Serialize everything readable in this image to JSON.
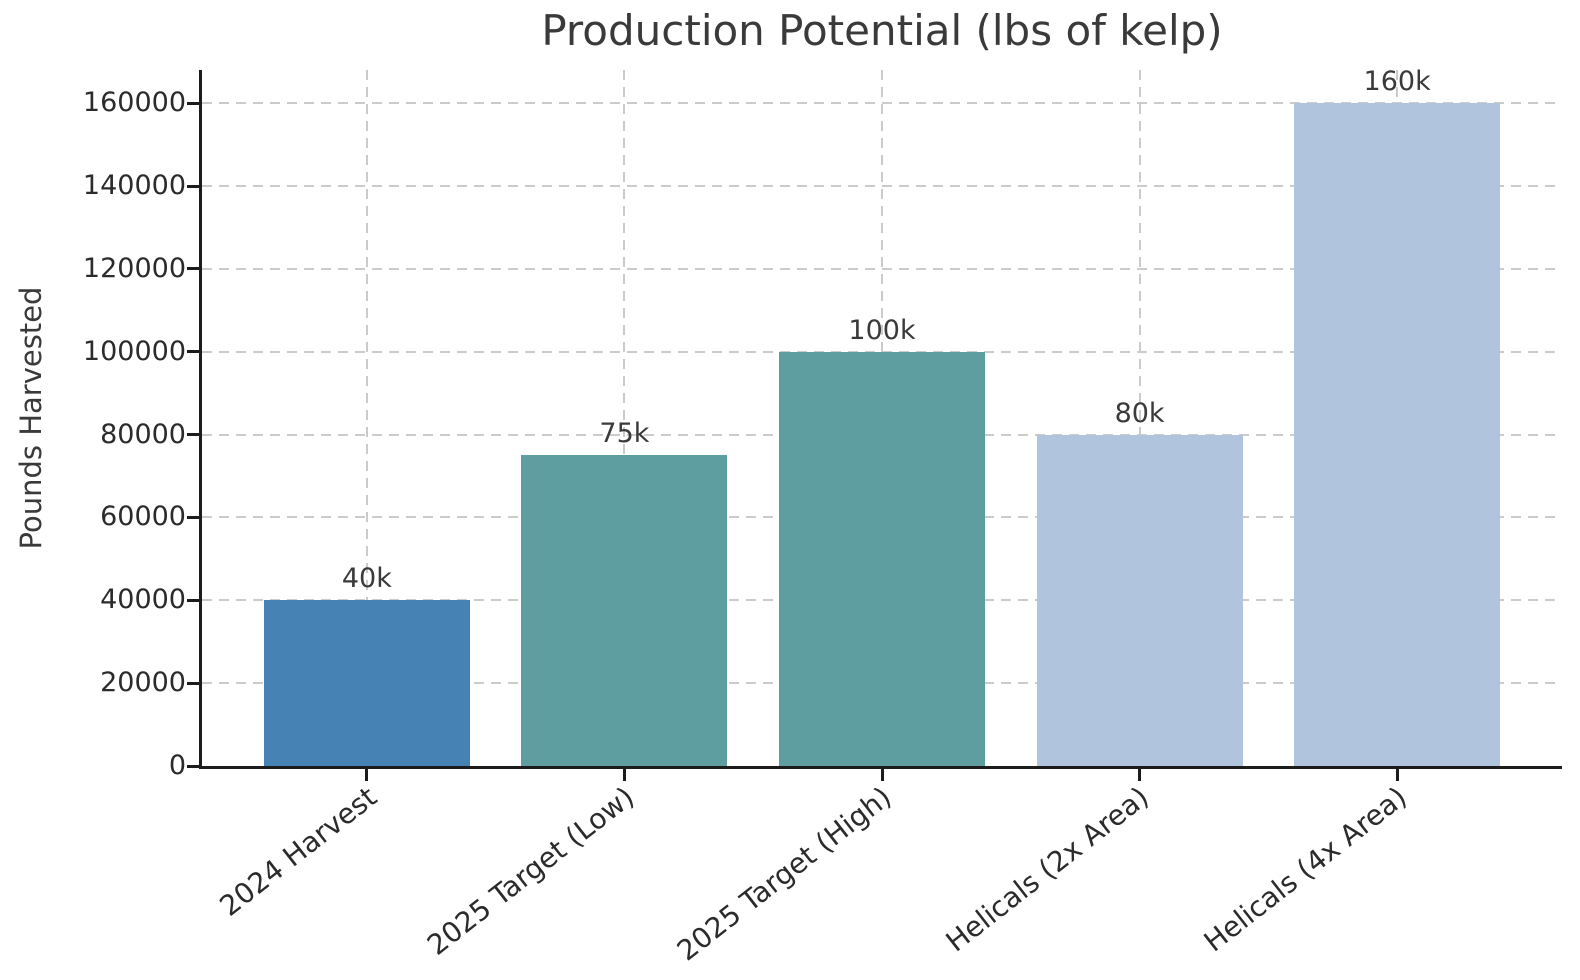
{
  "chart_data": {
    "type": "bar",
    "title": "Production Potential (lbs of kelp)",
    "xlabel": "",
    "ylabel": "Pounds Harvested",
    "categories": [
      "2024 Harvest",
      "2025 Target (Low)",
      "2025 Target (High)",
      "Helicals (2x Area)",
      "Helicals (4x Area)"
    ],
    "values": [
      40000,
      75000,
      100000,
      80000,
      160000
    ],
    "bar_labels": [
      "40k",
      "75k",
      "100k",
      "80k",
      "160k"
    ],
    "bar_colors": [
      "#4682B4",
      "#5F9EA0",
      "#5F9EA0",
      "#B0C4DE",
      "#B0C4DE"
    ],
    "yticks": [
      0,
      20000,
      40000,
      60000,
      80000,
      100000,
      120000,
      140000,
      160000
    ],
    "ytick_labels": [
      "0",
      "20000",
      "40000",
      "60000",
      "80000",
      "100000",
      "120000",
      "140000",
      "160000"
    ],
    "ylim": [
      0,
      168000
    ],
    "grid": {
      "style": "dashed",
      "axes": "both",
      "color": "#cbcbcb"
    },
    "legend": "none",
    "colors": {
      "spine": "#1c1c1c",
      "tick_text": "#2b2b2b",
      "label_text": "#3a3a3a",
      "background": "#ffffff"
    }
  }
}
